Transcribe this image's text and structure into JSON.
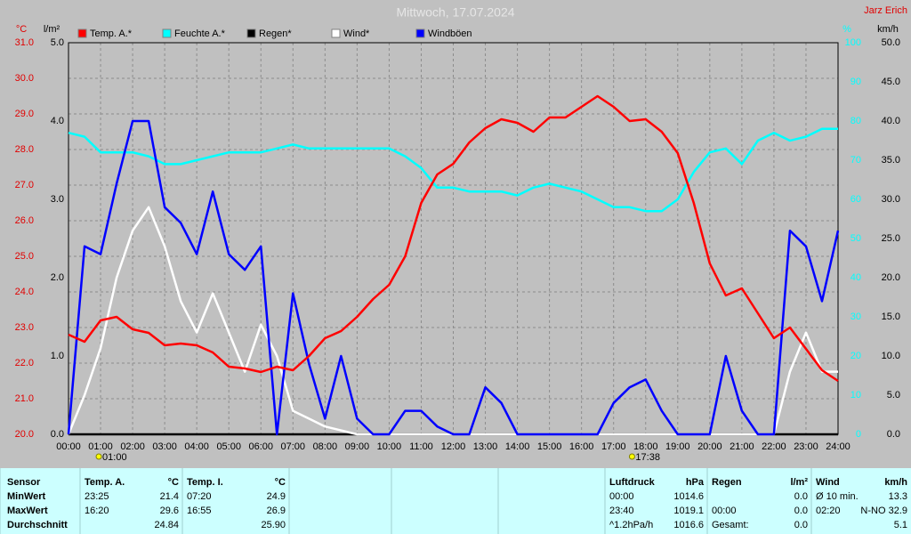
{
  "chart_data": {
    "type": "line",
    "title": "Mittwoch, 17.07.2024",
    "author": "Jarz Erich",
    "x": [
      0,
      0.5,
      1,
      1.5,
      2,
      2.5,
      3,
      3.5,
      4,
      4.5,
      5,
      5.5,
      6,
      6.5,
      7,
      7.5,
      8,
      8.5,
      9,
      9.5,
      10,
      10.5,
      11,
      11.5,
      12,
      12.5,
      13,
      13.5,
      14,
      14.5,
      15,
      15.5,
      16,
      16.5,
      17,
      17.5,
      18,
      18.5,
      19,
      19.5,
      20,
      20.5,
      21,
      21.5,
      22,
      22.5,
      23,
      23.5,
      24
    ],
    "xlim": [
      0,
      24
    ],
    "xticks": [
      {
        "value": 0,
        "label": "00:00"
      },
      {
        "value": 1,
        "label": "01:00"
      },
      {
        "value": 2,
        "label": "02:00"
      },
      {
        "value": 3,
        "label": "03:00"
      },
      {
        "value": 4,
        "label": "04:00"
      },
      {
        "value": 5,
        "label": "05:00"
      },
      {
        "value": 6,
        "label": "06:00"
      },
      {
        "value": 7,
        "label": "07:00"
      },
      {
        "value": 8,
        "label": "08:00"
      },
      {
        "value": 9,
        "label": "09:00"
      },
      {
        "value": 10,
        "label": "10:00"
      },
      {
        "value": 11,
        "label": "11:00"
      },
      {
        "value": 12,
        "label": "12:00"
      },
      {
        "value": 13,
        "label": "13:00"
      },
      {
        "value": 14,
        "label": "14:00"
      },
      {
        "value": 15,
        "label": "15:00"
      },
      {
        "value": 16,
        "label": "16:00"
      },
      {
        "value": 17,
        "label": "17:00"
      },
      {
        "value": 18,
        "label": "18:00"
      },
      {
        "value": 19,
        "label": "19:00"
      },
      {
        "value": 20,
        "label": "20:00"
      },
      {
        "value": 21,
        "label": "21:00"
      },
      {
        "value": 22,
        "label": "22:00"
      },
      {
        "value": 23,
        "label": "23:00"
      },
      {
        "value": 24,
        "label": "24:00"
      }
    ],
    "ylabel": "°C",
    "ylim": [
      20,
      31
    ],
    "yticks": [
      {
        "value": 20,
        "label": "20.0"
      },
      {
        "value": 21,
        "label": "21.0"
      },
      {
        "value": 22,
        "label": "22.0"
      },
      {
        "value": 23,
        "label": "23.0"
      },
      {
        "value": 24,
        "label": "24.0"
      },
      {
        "value": 25,
        "label": "25.0"
      },
      {
        "value": 26,
        "label": "26.0"
      },
      {
        "value": 27,
        "label": "27.0"
      },
      {
        "value": 28,
        "label": "28.0"
      },
      {
        "value": 29,
        "label": "29.0"
      },
      {
        "value": 30,
        "label": "30.0"
      },
      {
        "value": 31,
        "label": "31.0"
      }
    ],
    "y3label": "l/m²",
    "y3lim": [
      0,
      5
    ],
    "y3ticks": [
      {
        "value": 0,
        "label": "0.0"
      },
      {
        "value": 1,
        "label": "1.0"
      },
      {
        "value": 2,
        "label": "2.0"
      },
      {
        "value": 3,
        "label": "3.0"
      },
      {
        "value": 4,
        "label": "4.0"
      },
      {
        "value": 5,
        "label": "5.0"
      }
    ],
    "y4label": "%",
    "y4lim": [
      0,
      100
    ],
    "y4ticks": [
      0,
      10,
      20,
      30,
      40,
      50,
      60,
      70,
      80,
      90,
      100
    ],
    "y2label": "km/h",
    "y2lim": [
      0,
      50
    ],
    "y2ticks": [
      {
        "value": 0,
        "label": "0.0"
      },
      {
        "value": 5,
        "label": "5.0"
      },
      {
        "value": 10,
        "label": "10.0"
      },
      {
        "value": 15,
        "label": "15.0"
      },
      {
        "value": 20,
        "label": "20.0"
      },
      {
        "value": 25,
        "label": "25.0"
      },
      {
        "value": 30,
        "label": "30.0"
      },
      {
        "value": 35,
        "label": "35.0"
      },
      {
        "value": 40,
        "label": "40.0"
      },
      {
        "value": 45,
        "label": "45.0"
      },
      {
        "value": 50,
        "label": "50.0"
      }
    ],
    "grid": true,
    "series": [
      {
        "name": "Temp. A.*",
        "color": "#ff0000",
        "axis": "y",
        "values": [
          22.8,
          22.6,
          23.2,
          23.3,
          22.95,
          22.85,
          22.5,
          22.55,
          22.5,
          22.3,
          21.9,
          21.85,
          21.75,
          21.9,
          21.8,
          22.2,
          22.7,
          22.9,
          23.3,
          23.8,
          24.2,
          25.0,
          26.5,
          27.3,
          27.6,
          28.2,
          28.6,
          28.85,
          28.75,
          28.5,
          28.9,
          28.9,
          29.2,
          29.5,
          29.2,
          28.8,
          28.85,
          28.5,
          27.9,
          26.5,
          24.8,
          23.9,
          24.1,
          23.4,
          22.7,
          23.0,
          22.4,
          21.8,
          21.5
        ]
      },
      {
        "name": "Feuchte A.*",
        "color": "#00ffff",
        "axis": "y4",
        "values": [
          77,
          76,
          72,
          72,
          72,
          71,
          69,
          69,
          70,
          71,
          72,
          72,
          72,
          73,
          74,
          73,
          73,
          73,
          73,
          73,
          73,
          71,
          68,
          63,
          63,
          62,
          62,
          62,
          61,
          63,
          64,
          63,
          62,
          60,
          58,
          58,
          57,
          57,
          60,
          67,
          72,
          73,
          69,
          75,
          77,
          75,
          76,
          78,
          78
        ]
      },
      {
        "name": "Regen*",
        "color": "#000000",
        "axis": "y3",
        "values": [
          0,
          0,
          0,
          0,
          0,
          0,
          0,
          0,
          0,
          0,
          0,
          0,
          0,
          0,
          0,
          0,
          0,
          0,
          0,
          0,
          0,
          0,
          0,
          0,
          0,
          0,
          0,
          0,
          0,
          0,
          0,
          0,
          0,
          0,
          0,
          0,
          0,
          0,
          0,
          0,
          0,
          0,
          0,
          0,
          0,
          0,
          0,
          0,
          0
        ]
      },
      {
        "name": "Wind*",
        "color": "#ffffff",
        "axis": "y2",
        "values": [
          0,
          5,
          11,
          20,
          26,
          29,
          24,
          17,
          13,
          18,
          13,
          8,
          14,
          10,
          3,
          2,
          1,
          0.5,
          0,
          0,
          0,
          0,
          0,
          0,
          0,
          0,
          0,
          0,
          0,
          0,
          0,
          0,
          0,
          0,
          0,
          0,
          0,
          0,
          0,
          0,
          0,
          0,
          0,
          0,
          0,
          8,
          13,
          8,
          8
        ]
      },
      {
        "name": "Windböen",
        "color": "#0000ff",
        "axis": "y2",
        "values": [
          0,
          24,
          23,
          32,
          40,
          40,
          29,
          27,
          23,
          31,
          23,
          21,
          24,
          0,
          18,
          9,
          2,
          10,
          2,
          0,
          0,
          3,
          3,
          1,
          0,
          0,
          6,
          4,
          0,
          0,
          0,
          0,
          0,
          0,
          4,
          6,
          7,
          3,
          0,
          0,
          0,
          10,
          3,
          0,
          0,
          26,
          24,
          17,
          26
        ]
      }
    ],
    "annotations": [
      {
        "x": 1,
        "label": "01:00"
      },
      {
        "x": 17.63,
        "label": "17:38"
      }
    ]
  },
  "table": {
    "sections": [
      {
        "header": [
          "Sensor"
        ],
        "rows": [
          [
            "MinWert"
          ],
          [
            "MaxWert"
          ],
          [
            "Durchschnitt"
          ]
        ]
      },
      {
        "header": [
          "Temp. A.",
          "°C"
        ],
        "rows": [
          [
            "23:25",
            "21.4"
          ],
          [
            "16:20",
            "29.6"
          ],
          [
            null,
            "24.84"
          ]
        ]
      },
      {
        "header": [
          "Temp. I.",
          "°C"
        ],
        "rows": [
          [
            "07:20",
            "24.9"
          ],
          [
            "16:55",
            "26.9"
          ],
          [
            null,
            "25.90"
          ]
        ]
      },
      {
        "header": [
          "Luftdruck",
          "hPa"
        ],
        "rows": [
          [
            "00:00",
            "1014.6"
          ],
          [
            "23:40",
            "1019.1"
          ],
          [
            "^1.2hPa/h",
            "1016.6"
          ]
        ]
      },
      {
        "header": [
          "Regen",
          "l/m²"
        ],
        "rows": [
          [
            null,
            "0.0"
          ],
          [
            "00:00",
            "0.0"
          ],
          [
            "Gesamt:",
            "0.0"
          ]
        ]
      },
      {
        "header": [
          "Wind",
          "km/h"
        ],
        "rows": [
          [
            "Ø 10 min.",
            "13.3"
          ],
          [
            "02:20",
            "N-NO 32.9"
          ],
          [
            null,
            "5.1"
          ]
        ]
      }
    ]
  }
}
